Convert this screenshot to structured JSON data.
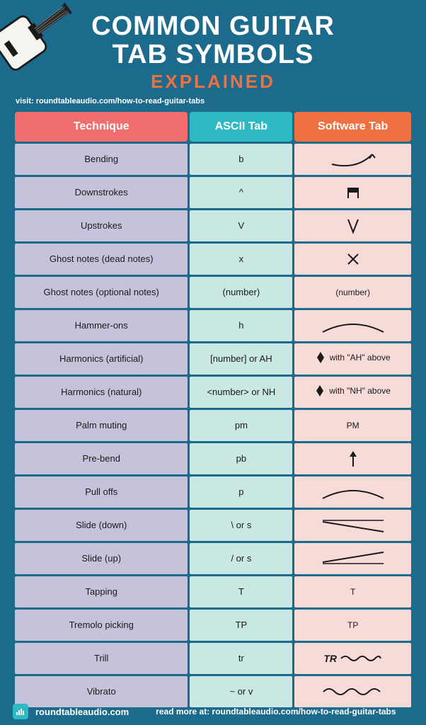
{
  "title": {
    "line1": "COMMON GUITAR",
    "line2": "TAB SYMBOLS",
    "sub": "EXPLAINED",
    "color_main": "#ffffff",
    "color_sub": "#ef7141"
  },
  "visit": "visit: roundtableaudio.com/how-to-read-guitar-tabs",
  "background_color": "#1c6b8c",
  "columns": {
    "technique": {
      "label": "Technique",
      "bg": "#f26d6d",
      "cell_bg": "#c5c3db"
    },
    "ascii": {
      "label": "ASCII Tab",
      "bg": "#2fb9c4",
      "cell_bg": "#c9e8e3"
    },
    "software": {
      "label": "Software Tab",
      "bg": "#ef7141",
      "cell_bg": "#f7dbd8"
    }
  },
  "rows": [
    {
      "technique": "Bending",
      "ascii": "b",
      "software_type": "bend_curve"
    },
    {
      "technique": "Downstrokes",
      "ascii": "^",
      "software_type": "down_stroke"
    },
    {
      "technique": "Upstrokes",
      "ascii": "V",
      "software_type": "up_stroke"
    },
    {
      "technique": "Ghost notes (dead notes)",
      "ascii": "x",
      "software_type": "x_mark"
    },
    {
      "technique": "Ghost notes (optional notes)",
      "ascii": "(number)",
      "software_type": "text",
      "software_text": "(number)"
    },
    {
      "technique": "Hammer-ons",
      "ascii": "h",
      "software_type": "arc"
    },
    {
      "technique": "Harmonics (artificial)",
      "ascii": "[number] or AH",
      "software_type": "diamond_label",
      "software_text": "with \"AH\" above"
    },
    {
      "technique": "Harmonics (natural)",
      "ascii": "<number> or NH",
      "software_type": "diamond_label",
      "software_text": "with \"NH\" above"
    },
    {
      "technique": "Palm muting",
      "ascii": "pm",
      "software_type": "text",
      "software_text": "PM"
    },
    {
      "technique": "Pre-bend",
      "ascii": "pb",
      "software_type": "arrow_up"
    },
    {
      "technique": "Pull offs",
      "ascii": "p",
      "software_type": "arc"
    },
    {
      "technique": "Slide (down)",
      "ascii": "\\ or s",
      "software_type": "slide_down"
    },
    {
      "technique": "Slide (up)",
      "ascii": "/ or s",
      "software_type": "slide_up"
    },
    {
      "technique": "Tapping",
      "ascii": "T",
      "software_type": "text",
      "software_text": "T"
    },
    {
      "technique": "Tremolo picking",
      "ascii": "TP",
      "software_type": "text",
      "software_text": "TP"
    },
    {
      "technique": "Trill",
      "ascii": "tr",
      "software_type": "trill",
      "software_text": "TR"
    },
    {
      "technique": "Vibrato",
      "ascii": "~ or v",
      "software_type": "wavy"
    }
  ],
  "footer": {
    "brand": "roundtableaudio.com",
    "readmore": "read more at: roundtableaudio.com/how-to-read-guitar-tabs",
    "logo_bg": "#2fb9c4"
  },
  "symbol_stroke": "#1a1a1a",
  "symbol_stroke_width": 2
}
